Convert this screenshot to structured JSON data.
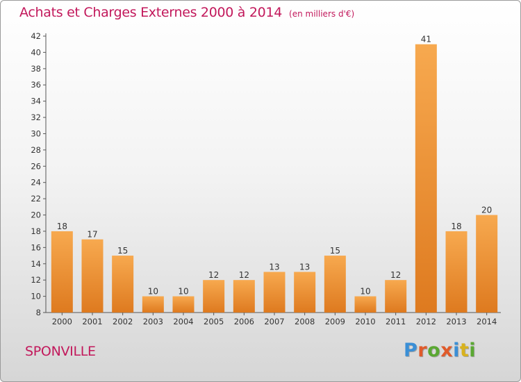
{
  "header": {
    "title": "Achats et Charges Externes 2000 à 2014",
    "unit": "(en milliers d'€)"
  },
  "footer": {
    "city": "SPONVILLE",
    "logo_text": "Proxiti"
  },
  "colors": {
    "title": "#c2185b",
    "bar_light": "#f7a94f",
    "bar_dark": "#de7a1f",
    "logo": [
      "#3a8fd6",
      "#e05a2a",
      "#5aa832",
      "#e05a2a",
      "#3a8fd6",
      "#d8b21e",
      "#5aa832"
    ]
  },
  "chart_data": {
    "type": "bar",
    "categories": [
      "2000",
      "2001",
      "2002",
      "2003",
      "2004",
      "2005",
      "2006",
      "2007",
      "2008",
      "2009",
      "2010",
      "2011",
      "2012",
      "2013",
      "2014"
    ],
    "values": [
      18,
      17,
      15,
      10,
      10,
      12,
      12,
      13,
      13,
      15,
      10,
      12,
      41,
      18,
      20
    ],
    "ylim": [
      8,
      42
    ],
    "yticks": [
      8,
      10,
      12,
      14,
      16,
      18,
      20,
      22,
      24,
      26,
      28,
      30,
      32,
      34,
      36,
      38,
      40,
      42
    ],
    "grid": false,
    "legend": "none",
    "value_labels": true
  }
}
